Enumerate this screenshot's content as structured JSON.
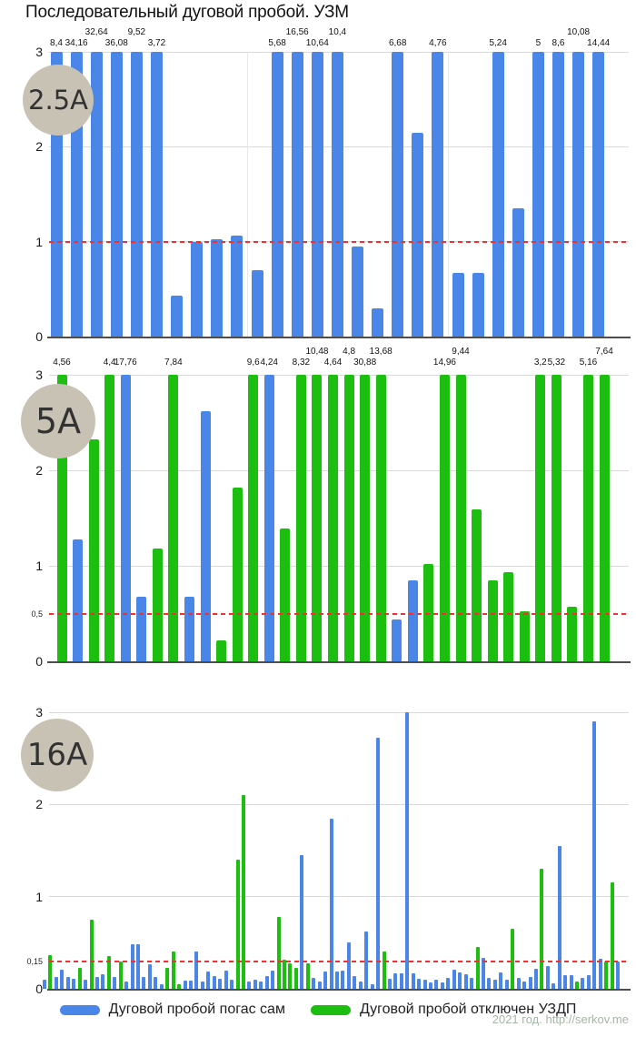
{
  "title": "Последовательный дуговой пробой. УЗМ",
  "watermark": "2021 год. http://serkov.me",
  "colors": {
    "blue": "#4a86e8",
    "green": "#1cbe10",
    "threshold": "#f23030",
    "grid": "#d9d9d9",
    "axis": "#4d4d4d",
    "badge_fill": "#c8c2b4"
  },
  "legend": [
    {
      "label": "Дуговой пробой погас сам",
      "color": "#4a86e8"
    },
    {
      "label": "Дуговой пробой отключен УЗДП",
      "color": "#1cbe10"
    }
  ],
  "chart_data": [
    {
      "type": "bar",
      "badge": "2.5A",
      "ylim": [
        0,
        3
      ],
      "grid": true,
      "legend_position": "bottom-shared",
      "y_ticks": [
        {
          "label": "3",
          "v": 3
        },
        {
          "label": "2",
          "v": 2
        },
        {
          "label": "1",
          "v": 1
        },
        {
          "label": "0",
          "v": 0
        }
      ],
      "threshold": {
        "value": 1,
        "display_v": 1,
        "label": ""
      },
      "bars": [
        {
          "c": "b",
          "v": 3,
          "l": "8,4"
        },
        {
          "c": "b",
          "v": 3,
          "l": "34,16"
        },
        {
          "c": "b",
          "v": 3,
          "l": "32,64",
          "r": true
        },
        {
          "c": "b",
          "v": 3,
          "l": "36,08"
        },
        {
          "c": "b",
          "v": 3,
          "l": "9,52",
          "r": true
        },
        {
          "c": "b",
          "v": 3,
          "l": "3,72"
        },
        {
          "c": "b",
          "v": 0.43
        },
        {
          "c": "b",
          "v": 1.0
        },
        {
          "c": "b",
          "v": 1.03
        },
        {
          "c": "b",
          "v": 1.06
        },
        {
          "c": "b",
          "v": 0.7
        },
        {
          "c": "b",
          "v": 3,
          "l": "5,68"
        },
        {
          "c": "b",
          "v": 3,
          "l": "16,56",
          "r": true
        },
        {
          "c": "b",
          "v": 3,
          "l": "10,64"
        },
        {
          "c": "b",
          "v": 3,
          "l": "10,4",
          "r": true
        },
        {
          "c": "b",
          "v": 0.95
        },
        {
          "c": "b",
          "v": 0.3
        },
        {
          "c": "b",
          "v": 3,
          "l": "6,68"
        },
        {
          "c": "b",
          "v": 2.15
        },
        {
          "c": "b",
          "v": 3,
          "l": "4,76"
        },
        {
          "c": "b",
          "v": 0.67
        },
        {
          "c": "b",
          "v": 0.67
        },
        {
          "c": "b",
          "v": 3,
          "l": "5,24"
        },
        {
          "c": "b",
          "v": 1.35
        },
        {
          "c": "b",
          "v": 3,
          "l": "5"
        },
        {
          "c": "b",
          "v": 3,
          "l": "8,6"
        },
        {
          "c": "b",
          "v": 3,
          "l": "10,08",
          "r": true
        },
        {
          "c": "b",
          "v": 3,
          "l": "14,44"
        }
      ]
    },
    {
      "type": "bar",
      "badge": "5A",
      "ylim": [
        0,
        3
      ],
      "grid": true,
      "y_ticks": [
        {
          "label": "3",
          "v": 3
        },
        {
          "label": "2",
          "v": 2
        },
        {
          "label": "1",
          "v": 1
        },
        {
          "label": "0,5",
          "v": 0.5,
          "small": true
        },
        {
          "label": "0",
          "v": 0
        }
      ],
      "threshold": {
        "value": 0.5,
        "display_v": 0.5,
        "label": "0,5"
      },
      "bars": [
        {
          "c": "g",
          "v": 3,
          "l": "4,56"
        },
        {
          "c": "b",
          "v": 1.28
        },
        {
          "c": "g",
          "v": 2.32
        },
        {
          "c": "g",
          "v": 3,
          "l": "4,4"
        },
        {
          "c": "b",
          "v": 3,
          "l": "17,76"
        },
        {
          "c": "b",
          "v": 0.68
        },
        {
          "c": "g",
          "v": 1.18
        },
        {
          "c": "g",
          "v": 3,
          "l": "7,84"
        },
        {
          "c": "b",
          "v": 0.68
        },
        {
          "c": "b",
          "v": 2.62
        },
        {
          "c": "g",
          "v": 0.22
        },
        {
          "c": "g",
          "v": 1.82
        },
        {
          "c": "g",
          "v": 3,
          "l": "9,6"
        },
        {
          "c": "b",
          "v": 3,
          "l": "4,24"
        },
        {
          "c": "g",
          "v": 1.39
        },
        {
          "c": "g",
          "v": 3,
          "l": "8,32"
        },
        {
          "c": "g",
          "v": 3,
          "l": "10,48",
          "r": true
        },
        {
          "c": "g",
          "v": 3,
          "l": "4,64"
        },
        {
          "c": "g",
          "v": 3,
          "l": "4,8",
          "r": true
        },
        {
          "c": "g",
          "v": 3,
          "l": "30,88"
        },
        {
          "c": "g",
          "v": 3,
          "l": "13,68",
          "r": true
        },
        {
          "c": "b",
          "v": 0.44
        },
        {
          "c": "b",
          "v": 0.85
        },
        {
          "c": "g",
          "v": 1.02
        },
        {
          "c": "g",
          "v": 3,
          "l": "14,96"
        },
        {
          "c": "g",
          "v": 3,
          "l": "9,44",
          "r": true
        },
        {
          "c": "g",
          "v": 1.59
        },
        {
          "c": "g",
          "v": 0.85
        },
        {
          "c": "g",
          "v": 0.93
        },
        {
          "c": "g",
          "v": 0.52
        },
        {
          "c": "g",
          "v": 3,
          "l": "3,2"
        },
        {
          "c": "g",
          "v": 3,
          "l": "5,32"
        },
        {
          "c": "g",
          "v": 0.57
        },
        {
          "c": "g",
          "v": 3,
          "l": "5,16"
        },
        {
          "c": "g",
          "v": 3,
          "l": "7,64",
          "r": true
        }
      ]
    },
    {
      "type": "bar",
      "badge": "16A",
      "ylim": [
        0,
        3
      ],
      "grid": true,
      "y_ticks": [
        {
          "label": "3",
          "v": 3
        },
        {
          "label": "2",
          "v": 2
        },
        {
          "label": "1",
          "v": 1
        },
        {
          "label": "0,15",
          "v": 0.3,
          "small": true
        },
        {
          "label": "0",
          "v": 0
        }
      ],
      "threshold": {
        "value": 0.15,
        "display_v": 0.3,
        "label": "0,15"
      },
      "bars": [
        {
          "c": "b",
          "v": 0.1
        },
        {
          "c": "g",
          "v": 0.37
        },
        {
          "c": "b",
          "v": 0.13
        },
        {
          "c": "b",
          "v": 0.21
        },
        {
          "c": "b",
          "v": 0.13
        },
        {
          "c": "b",
          "v": 0.11
        },
        {
          "c": "g",
          "v": 0.23
        },
        {
          "c": "b",
          "v": 0.1
        },
        {
          "c": "g",
          "v": 0.75
        },
        {
          "c": "b",
          "v": 0.13
        },
        {
          "c": "b",
          "v": 0.16
        },
        {
          "c": "g",
          "v": 0.36
        },
        {
          "c": "b",
          "v": 0.13
        },
        {
          "c": "g",
          "v": 0.3
        },
        {
          "c": "b",
          "v": 0.08
        },
        {
          "c": "b",
          "v": 0.48
        },
        {
          "c": "b",
          "v": 0.48
        },
        {
          "c": "b",
          "v": 0.13
        },
        {
          "c": "b",
          "v": 0.27
        },
        {
          "c": "b",
          "v": 0.13
        },
        {
          "c": "b",
          "v": 0.05
        },
        {
          "c": "g",
          "v": 0.23
        },
        {
          "c": "g",
          "v": 0.4
        },
        {
          "c": "g",
          "v": 0.05
        },
        {
          "c": "b",
          "v": 0.09
        },
        {
          "c": "b",
          "v": 0.09
        },
        {
          "c": "b",
          "v": 0.4
        },
        {
          "c": "b",
          "v": 0.08
        },
        {
          "c": "b",
          "v": 0.19
        },
        {
          "c": "b",
          "v": 0.14
        },
        {
          "c": "b",
          "v": 0.11
        },
        {
          "c": "b",
          "v": 0.2
        },
        {
          "c": "b",
          "v": 0.1
        },
        {
          "c": "g",
          "v": 1.4
        },
        {
          "c": "g",
          "v": 2.1
        },
        {
          "c": "b",
          "v": 0.08
        },
        {
          "c": "b",
          "v": 0.1
        },
        {
          "c": "b",
          "v": 0.08
        },
        {
          "c": "b",
          "v": 0.14
        },
        {
          "c": "b",
          "v": 0.2
        },
        {
          "c": "g",
          "v": 0.78
        },
        {
          "c": "g",
          "v": 0.32
        },
        {
          "c": "g",
          "v": 0.28
        },
        {
          "c": "g",
          "v": 0.23
        },
        {
          "c": "b",
          "v": 1.45
        },
        {
          "c": "g",
          "v": 0.28
        },
        {
          "c": "b",
          "v": 0.12
        },
        {
          "c": "b",
          "v": 0.08
        },
        {
          "c": "b",
          "v": 0.19
        },
        {
          "c": "b",
          "v": 1.85
        },
        {
          "c": "b",
          "v": 0.19
        },
        {
          "c": "b",
          "v": 0.2
        },
        {
          "c": "b",
          "v": 0.5
        },
        {
          "c": "b",
          "v": 0.14
        },
        {
          "c": "b",
          "v": 0.08
        },
        {
          "c": "b",
          "v": 0.62
        },
        {
          "c": "b",
          "v": 0.05
        },
        {
          "c": "b",
          "v": 2.72
        },
        {
          "c": "g",
          "v": 0.4
        },
        {
          "c": "b",
          "v": 0.11
        },
        {
          "c": "b",
          "v": 0.17
        },
        {
          "c": "b",
          "v": 0.17
        },
        {
          "c": "b",
          "v": 3.0
        },
        {
          "c": "b",
          "v": 0.17
        },
        {
          "c": "b",
          "v": 0.11
        },
        {
          "c": "b",
          "v": 0.1
        },
        {
          "c": "b",
          "v": 0.07
        },
        {
          "c": "b",
          "v": 0.1
        },
        {
          "c": "b",
          "v": 0.07
        },
        {
          "c": "b",
          "v": 0.12
        },
        {
          "c": "b",
          "v": 0.21
        },
        {
          "c": "b",
          "v": 0.18
        },
        {
          "c": "b",
          "v": 0.16
        },
        {
          "c": "b",
          "v": 0.12
        },
        {
          "c": "g",
          "v": 0.45
        },
        {
          "c": "b",
          "v": 0.34
        },
        {
          "c": "b",
          "v": 0.12
        },
        {
          "c": "b",
          "v": 0.1
        },
        {
          "c": "b",
          "v": 0.18
        },
        {
          "c": "b",
          "v": 0.1
        },
        {
          "c": "g",
          "v": 0.65
        },
        {
          "c": "b",
          "v": 0.12
        },
        {
          "c": "b",
          "v": 0.08
        },
        {
          "c": "b",
          "v": 0.13
        },
        {
          "c": "b",
          "v": 0.22
        },
        {
          "c": "g",
          "v": 1.3
        },
        {
          "c": "b",
          "v": 0.25
        },
        {
          "c": "b",
          "v": 0.06
        },
        {
          "c": "b",
          "v": 1.55
        },
        {
          "c": "b",
          "v": 0.15
        },
        {
          "c": "b",
          "v": 0.15
        },
        {
          "c": "g",
          "v": 0.08
        },
        {
          "c": "b",
          "v": 0.12
        },
        {
          "c": "b",
          "v": 0.15
        },
        {
          "c": "b",
          "v": 2.9
        },
        {
          "c": "b",
          "v": 0.33
        },
        {
          "c": "g",
          "v": 0.3
        },
        {
          "c": "g",
          "v": 1.15
        },
        {
          "c": "b",
          "v": 0.3
        }
      ]
    }
  ]
}
